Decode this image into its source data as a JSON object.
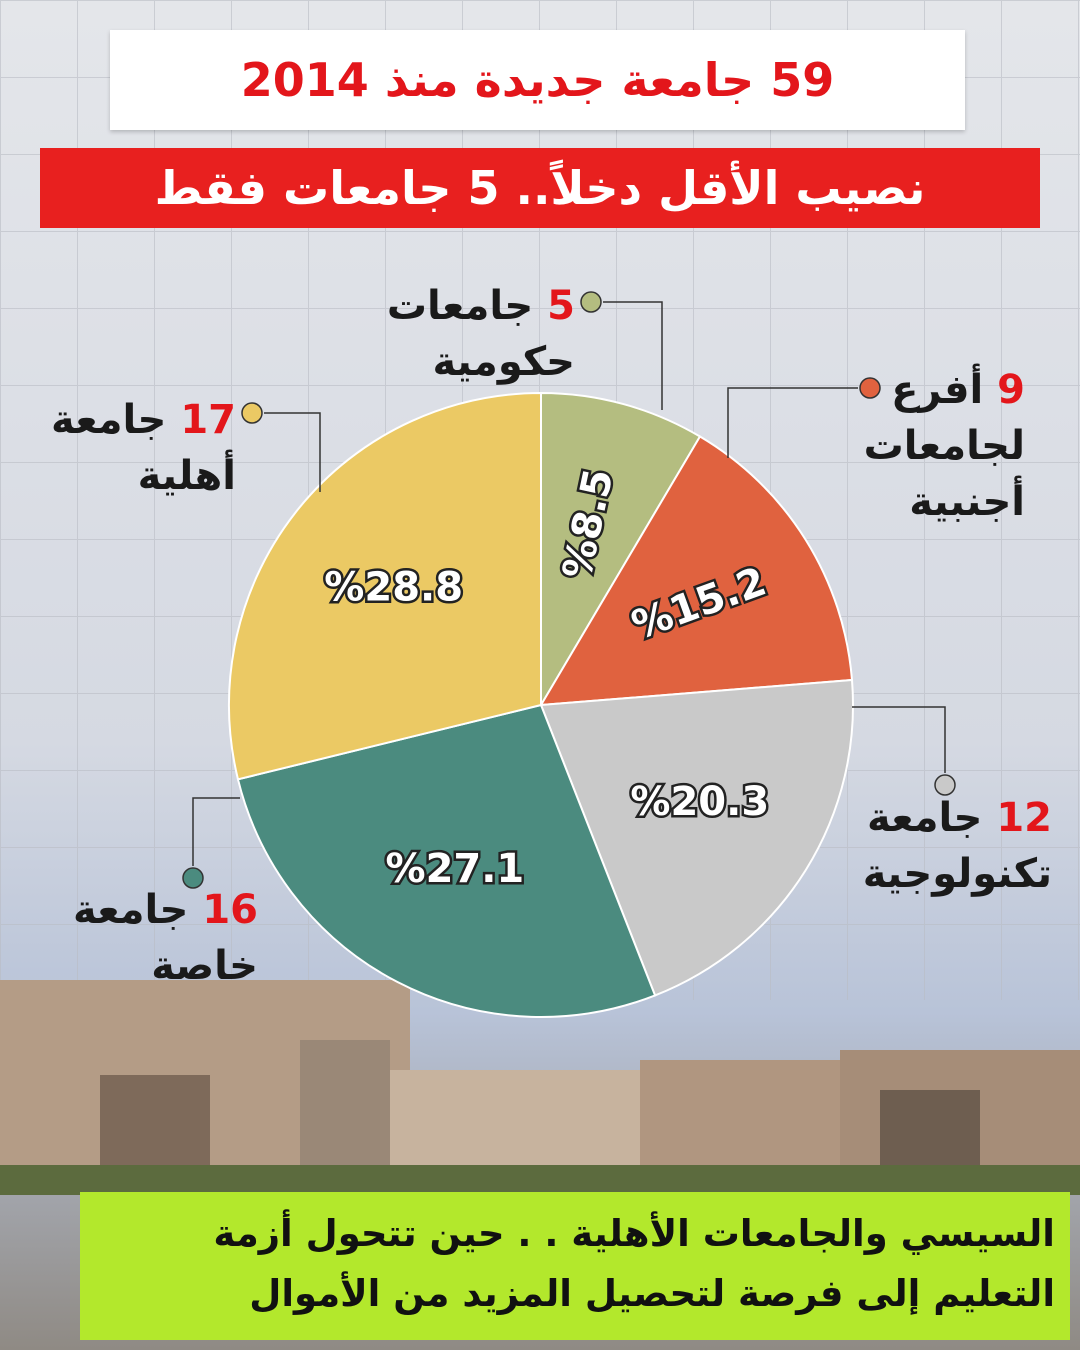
{
  "chart_data": {
    "type": "pie",
    "title": "59 جامعة جديدة منذ 2014",
    "subtitle": "نصيب الأقل دخلاً.. 5 جامعات فقط",
    "categories": [
      "جامعات حكومية",
      "أفرع لجامعات أجنبية",
      "جامعة تكنولوجية",
      "جامعة خاصة",
      "جامعة أهلية"
    ],
    "counts": [
      5,
      9,
      12,
      16,
      17
    ],
    "values": [
      8.5,
      15.2,
      20.3,
      27.1,
      28.8
    ],
    "value_labels": [
      "%8.5",
      "%15.2",
      "%20.3",
      "%27.1",
      "%28.8"
    ],
    "colors": [
      "#b4bd80",
      "#e0623f",
      "#c9c9c9",
      "#4b8b7f",
      "#ebc964"
    ],
    "footer": "السيسي والجامعات الأهلية . . حين تتحول أزمة التعليم إلى فرصة لتحصيل المزيد من الأموال"
  }
}
